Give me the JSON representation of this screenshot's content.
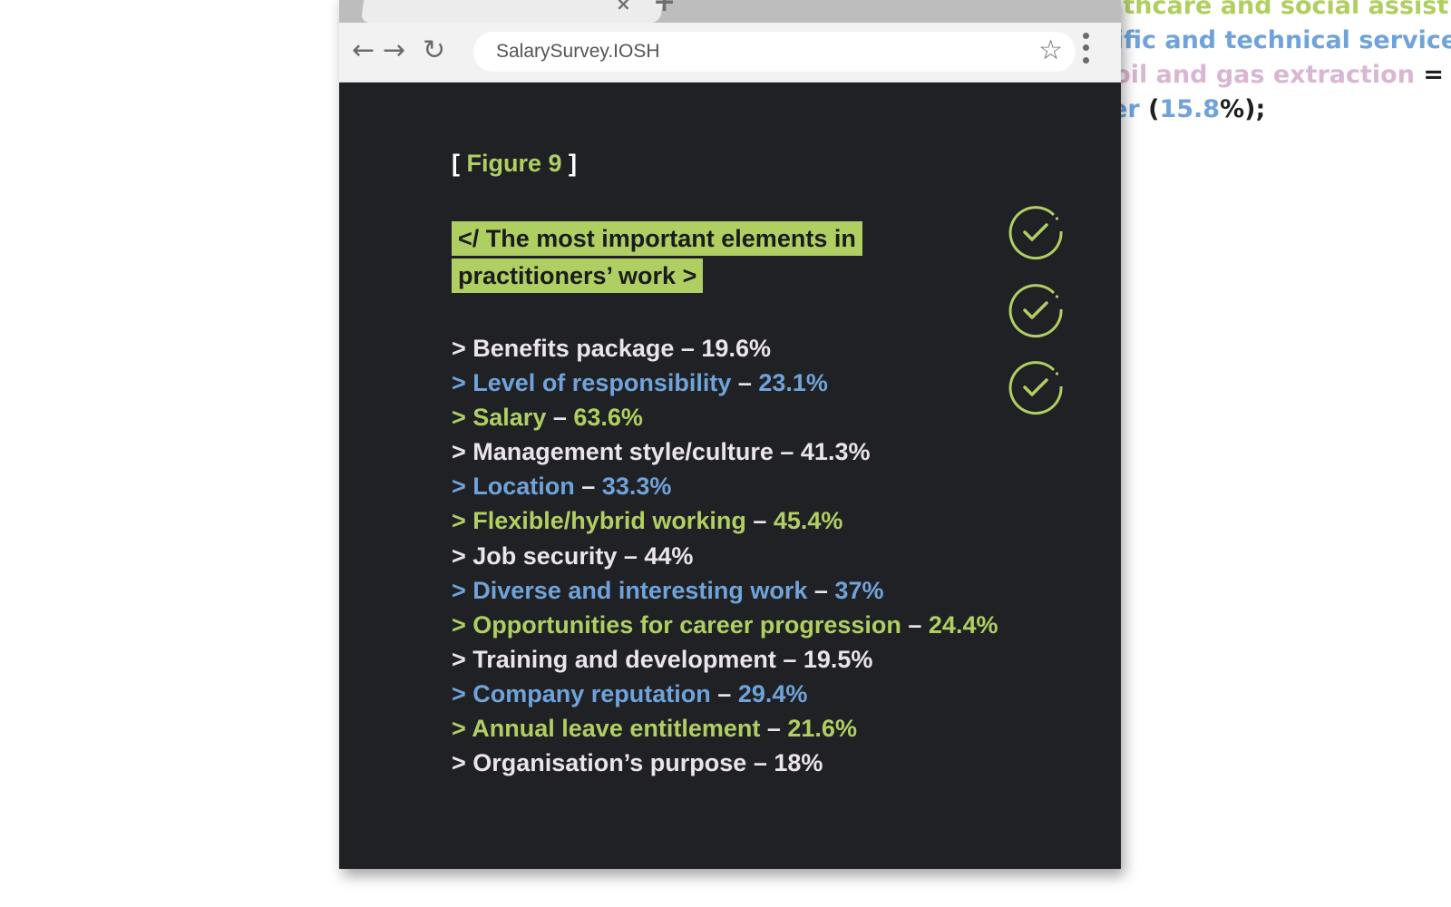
{
  "background_fragment": {
    "line1": "Healthcare and social assist",
    "line2": "ientific and technical service",
    "line3_text": "ng, oil and gas extraction",
    "line3_suffix": " = (",
    "line4_label": "Other",
    "line4_open": " (",
    "line4_value": "15.8",
    "line4_close": "%);"
  },
  "browser": {
    "tab_close": "×",
    "new_tab": "+",
    "back": "←",
    "forward": "→",
    "reload": "↻",
    "url": "SalarySurvey.IOSH",
    "star": "☆"
  },
  "figure": {
    "bracket_open": "[ ",
    "label": "Figure 9",
    "bracket_close": " ]",
    "heading": "</ The most important elements in practitioners’ work >"
  },
  "items": [
    {
      "label": "> Benefits package",
      "value": "19.6%",
      "color": "white"
    },
    {
      "label": "> Level of responsibility",
      "value": "23.1%",
      "color": "blue"
    },
    {
      "label": "> Salary",
      "value": "63.6%",
      "color": "green"
    },
    {
      "label": "> Management style/culture",
      "value": "41.3%",
      "color": "white"
    },
    {
      "label": "> Location",
      "value": "33.3%",
      "color": "blue"
    },
    {
      "label": "> Flexible/hybrid working",
      "value": "45.4%",
      "color": "green"
    },
    {
      "label": "> Job security",
      "value": "44%",
      "color": "white"
    },
    {
      "label": "> Diverse and interesting work",
      "value": "37%",
      "color": "blue"
    },
    {
      "label": "> Opportunities for career progression",
      "value": "24.4%",
      "color": "green"
    },
    {
      "label": "> Training and development",
      "value": "19.5%",
      "color": "white"
    },
    {
      "label": "> Company reputation",
      "value": "29.4%",
      "color": "blue"
    },
    {
      "label": "> Annual leave entitlement",
      "value": "21.6%",
      "color": "green"
    },
    {
      "label": "> Organisation’s purpose",
      "value": "18%",
      "color": "white"
    }
  ],
  "separator": " – ",
  "colors": {
    "accent_green": "#b0cf62",
    "accent_blue": "#6fa3d9",
    "text_light": "#ebe3ee",
    "panel_bg": "#202124"
  },
  "icons": [
    "check-circle-icon",
    "check-circle-icon",
    "check-circle-icon"
  ]
}
